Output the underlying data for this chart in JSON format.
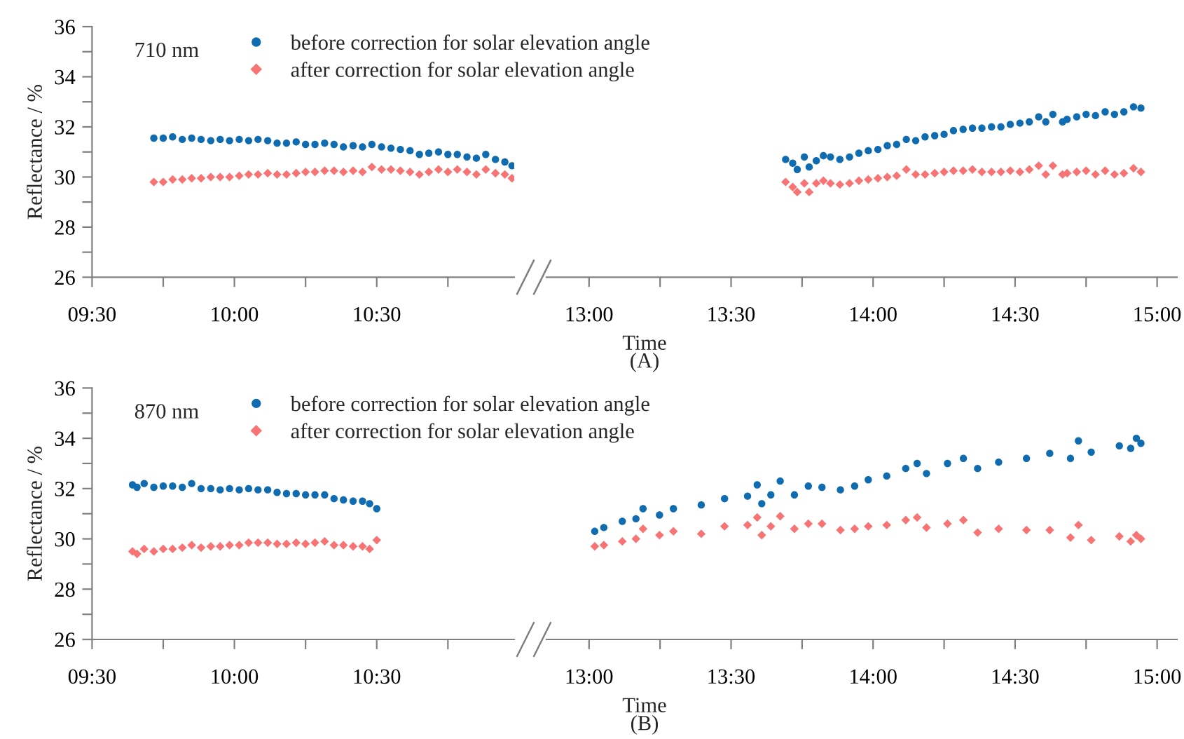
{
  "chart_data": [
    {
      "type": "scatter",
      "ylabel": "Reflectance / %",
      "annotations": [
        "710 nm"
      ],
      "legend": "top",
      "xlim": [
        9.5,
        10.983
      ],
      "ylim": [
        26,
        36
      ],
      "xticks": [
        {
          "value": 9.5,
          "label": "09:30"
        },
        {
          "value": 9.75,
          "label": null
        },
        {
          "value": 10.0,
          "label": "10:00"
        },
        {
          "value": 10.25,
          "label": null
        },
        {
          "value": 10.5,
          "label": "10:30"
        },
        {
          "value": 10.75,
          "label": null
        }
      ],
      "yticks": [
        26,
        {
          "value": 27,
          "label": null
        },
        28,
        {
          "value": 29,
          "label": null
        },
        30,
        {
          "value": 31,
          "label": null
        },
        32,
        {
          "value": 33,
          "label": null
        },
        34,
        {
          "value": 35,
          "label": null
        },
        36
      ],
      "x": [
        9.717,
        9.75,
        9.783,
        9.817,
        9.85,
        9.883,
        9.917,
        9.95,
        9.983,
        10.017,
        10.05,
        10.083,
        10.117,
        10.15,
        10.183,
        10.217,
        10.25,
        10.283,
        10.317,
        10.35,
        10.383,
        10.417,
        10.45,
        10.483,
        10.517,
        10.55,
        10.583,
        10.617,
        10.65,
        10.683,
        10.717,
        10.75,
        10.783,
        10.817,
        10.85,
        10.883,
        10.917,
        10.95,
        10.975
      ],
      "series": [
        {
          "name": "before correction for solar elevation angle",
          "color": "#0f6cb0",
          "marker": "circle",
          "values": [
            31.55,
            31.55,
            31.6,
            31.5,
            31.55,
            31.5,
            31.45,
            31.5,
            31.45,
            31.5,
            31.45,
            31.5,
            31.45,
            31.35,
            31.35,
            31.4,
            31.3,
            31.3,
            31.35,
            31.3,
            31.2,
            31.25,
            31.2,
            31.3,
            31.2,
            31.15,
            31.1,
            31.05,
            30.9,
            30.95,
            31.0,
            30.9,
            30.9,
            30.8,
            30.75,
            30.9,
            30.7,
            30.6,
            30.45
          ]
        },
        {
          "name": "after correction for solar elevation angle",
          "color": "#f87474",
          "marker": "diamond",
          "values": [
            29.8,
            29.8,
            29.9,
            29.9,
            29.95,
            29.95,
            30.0,
            30.0,
            30.0,
            30.05,
            30.1,
            30.1,
            30.15,
            30.1,
            30.1,
            30.15,
            30.2,
            30.2,
            30.25,
            30.25,
            30.2,
            30.25,
            30.2,
            30.4,
            30.3,
            30.3,
            30.25,
            30.2,
            30.1,
            30.2,
            30.3,
            30.2,
            30.3,
            30.2,
            30.1,
            30.3,
            30.15,
            30.1,
            29.95
          ]
        }
      ]
    },
    {
      "type": "scatter",
      "xlabel": "Time",
      "annotations": [
        "(A)"
      ],
      "tick_labels": "x",
      "xlim": [
        12.85,
        15.07
      ],
      "ylim": [
        26,
        36
      ],
      "xticks": [
        {
          "value": 13.0,
          "label": "13:00"
        },
        {
          "value": 13.25,
          "label": null
        },
        {
          "value": 13.5,
          "label": "13:30"
        },
        {
          "value": 13.75,
          "label": null
        },
        {
          "value": 14.0,
          "label": "14:00"
        },
        {
          "value": 14.25,
          "label": null
        },
        {
          "value": 14.5,
          "label": "14:30"
        },
        {
          "value": 14.75,
          "label": null
        },
        {
          "value": 15.0,
          "label": "15:00"
        }
      ],
      "x": [
        13.692,
        13.717,
        13.733,
        13.758,
        13.775,
        13.8,
        13.825,
        13.85,
        13.883,
        13.917,
        13.95,
        13.983,
        14.017,
        14.05,
        14.083,
        14.117,
        14.15,
        14.183,
        14.217,
        14.25,
        14.283,
        14.317,
        14.35,
        14.383,
        14.417,
        14.45,
        14.483,
        14.517,
        14.55,
        14.583,
        14.608,
        14.633,
        14.667,
        14.683,
        14.717,
        14.75,
        14.783,
        14.817,
        14.85,
        14.883,
        14.917,
        14.943
      ],
      "series": [
        {
          "color": "#0f6cb0",
          "marker": "circle",
          "values": [
            30.7,
            30.55,
            30.3,
            30.8,
            30.4,
            30.65,
            30.85,
            30.8,
            30.7,
            30.8,
            30.95,
            31.05,
            31.1,
            31.25,
            31.3,
            31.5,
            31.45,
            31.6,
            31.65,
            31.7,
            31.85,
            31.9,
            31.95,
            31.95,
            32.0,
            32.0,
            32.1,
            32.15,
            32.2,
            32.4,
            32.2,
            32.5,
            32.2,
            32.3,
            32.4,
            32.5,
            32.45,
            32.6,
            32.5,
            32.6,
            32.8,
            32.75
          ]
        },
        {
          "color": "#f87474",
          "marker": "diamond",
          "values": [
            29.8,
            29.6,
            29.4,
            29.75,
            29.4,
            29.75,
            29.85,
            29.75,
            29.7,
            29.75,
            29.85,
            29.9,
            29.95,
            30.0,
            30.05,
            30.3,
            30.1,
            30.1,
            30.15,
            30.2,
            30.25,
            30.25,
            30.3,
            30.2,
            30.2,
            30.2,
            30.25,
            30.2,
            30.3,
            30.45,
            30.1,
            30.45,
            30.1,
            30.15,
            30.2,
            30.25,
            30.1,
            30.25,
            30.1,
            30.15,
            30.35,
            30.2
          ]
        }
      ]
    },
    {
      "type": "scatter",
      "ylabel": "Reflectance / %",
      "annotations": [
        "870 nm"
      ],
      "legend": "top",
      "xlim": [
        9.5,
        10.983
      ],
      "ylim": [
        26,
        36
      ],
      "xticks": [
        {
          "value": 9.5,
          "label": "09:30"
        },
        {
          "value": 9.75,
          "label": null
        },
        {
          "value": 10.0,
          "label": "10:00"
        },
        {
          "value": 10.25,
          "label": null
        },
        {
          "value": 10.5,
          "label": "10:30"
        },
        {
          "value": 10.75,
          "label": null
        }
      ],
      "yticks": [
        26,
        {
          "value": 27,
          "label": null
        },
        28,
        {
          "value": 29,
          "label": null
        },
        30,
        {
          "value": 31,
          "label": null
        },
        32,
        {
          "value": 33,
          "label": null
        },
        34,
        {
          "value": 35,
          "label": null
        },
        36
      ],
      "x": [
        9.642,
        9.658,
        9.683,
        9.717,
        9.75,
        9.783,
        9.817,
        9.85,
        9.883,
        9.917,
        9.95,
        9.983,
        10.017,
        10.05,
        10.083,
        10.117,
        10.15,
        10.183,
        10.217,
        10.25,
        10.283,
        10.317,
        10.35,
        10.383,
        10.417,
        10.45,
        10.475,
        10.5
      ],
      "series": [
        {
          "name": "before correction for solar elevation angle",
          "color": "#0f6cb0",
          "marker": "circle",
          "values": [
            32.15,
            32.05,
            32.2,
            32.05,
            32.1,
            32.1,
            32.05,
            32.2,
            32.0,
            32.0,
            31.95,
            32.0,
            31.95,
            32.0,
            31.95,
            31.95,
            31.85,
            31.8,
            31.8,
            31.75,
            31.75,
            31.75,
            31.6,
            31.55,
            31.5,
            31.5,
            31.4,
            31.2
          ]
        },
        {
          "name": "after correction for solar elevation angle",
          "color": "#f87474",
          "marker": "diamond",
          "values": [
            29.5,
            29.4,
            29.6,
            29.5,
            29.6,
            29.6,
            29.65,
            29.75,
            29.65,
            29.7,
            29.7,
            29.75,
            29.75,
            29.85,
            29.85,
            29.85,
            29.8,
            29.8,
            29.85,
            29.8,
            29.85,
            29.9,
            29.75,
            29.75,
            29.7,
            29.7,
            29.6,
            29.95
          ]
        }
      ]
    },
    {
      "type": "scatter",
      "xlabel": "Time",
      "annotations": [
        "(B)"
      ],
      "tick_labels": "x",
      "xlim": [
        12.85,
        15.07
      ],
      "ylim": [
        26,
        36
      ],
      "xticks": [
        {
          "value": 13.0,
          "label": "13:00"
        },
        {
          "value": 13.25,
          "label": null
        },
        {
          "value": 13.5,
          "label": "13:30"
        },
        {
          "value": 13.75,
          "label": null
        },
        {
          "value": 14.0,
          "label": "14:00"
        },
        {
          "value": 14.25,
          "label": null
        },
        {
          "value": 14.5,
          "label": "14:30"
        },
        {
          "value": 14.75,
          "label": null
        },
        {
          "value": 15.0,
          "label": "15:00"
        }
      ],
      "x": [
        13.02,
        13.052,
        13.117,
        13.165,
        13.19,
        13.248,
        13.297,
        13.395,
        13.477,
        13.558,
        13.592,
        13.608,
        13.64,
        13.673,
        13.723,
        13.772,
        13.82,
        13.885,
        13.935,
        13.983,
        14.048,
        14.115,
        14.155,
        14.188,
        14.262,
        14.318,
        14.368,
        14.442,
        14.54,
        14.622,
        14.695,
        14.723,
        14.768,
        14.867,
        14.907,
        14.927,
        14.943
      ],
      "series": [
        {
          "color": "#0f6cb0",
          "marker": "circle",
          "values": [
            30.3,
            30.45,
            30.7,
            30.8,
            31.2,
            30.95,
            31.2,
            31.35,
            31.6,
            31.7,
            32.15,
            31.4,
            31.75,
            32.3,
            31.75,
            32.1,
            32.05,
            31.95,
            32.1,
            32.35,
            32.5,
            32.8,
            33.0,
            32.6,
            33.0,
            33.2,
            32.8,
            33.05,
            33.2,
            33.4,
            33.2,
            33.9,
            33.45,
            33.7,
            33.6,
            34.0,
            33.8
          ]
        },
        {
          "color": "#f87474",
          "marker": "diamond",
          "values": [
            29.7,
            29.75,
            29.9,
            30.0,
            30.4,
            30.15,
            30.3,
            30.2,
            30.5,
            30.55,
            30.85,
            30.15,
            30.5,
            30.9,
            30.4,
            30.6,
            30.6,
            30.35,
            30.4,
            30.5,
            30.55,
            30.75,
            30.85,
            30.45,
            30.6,
            30.75,
            30.25,
            30.4,
            30.35,
            30.35,
            30.05,
            30.55,
            29.95,
            30.1,
            29.9,
            30.15,
            30.0
          ]
        }
      ]
    }
  ]
}
